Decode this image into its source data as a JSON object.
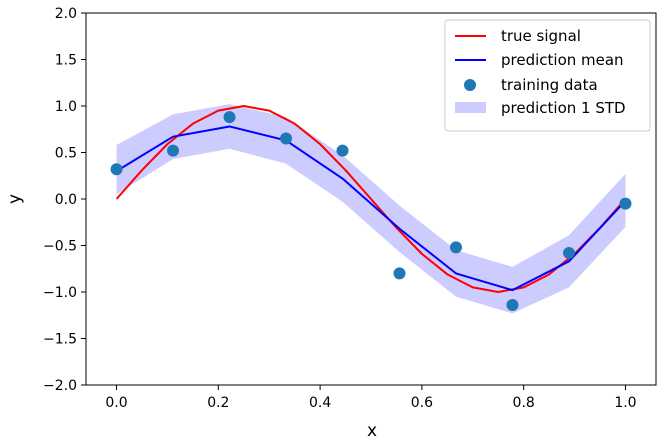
{
  "chart_data": {
    "type": "line",
    "title": "",
    "xlabel": "x",
    "ylabel": "y",
    "xlim": [
      -0.06,
      1.06
    ],
    "ylim": [
      -2.0,
      2.0
    ],
    "xticks": [
      "0.0",
      "0.2",
      "0.4",
      "0.6",
      "0.8",
      "1.0"
    ],
    "yticks": [
      "2.0",
      "1.5",
      "1.0",
      "0.5",
      "0.0",
      "−0.5",
      "−1.0",
      "−1.5",
      "−2.0"
    ],
    "grid": false,
    "legend_position": "top-right",
    "series": [
      {
        "name": "true signal",
        "kind": "line",
        "color": "#ff0000",
        "x": [
          0.0,
          0.05,
          0.1,
          0.15,
          0.2,
          0.25,
          0.3,
          0.35,
          0.4,
          0.45,
          0.5,
          0.55,
          0.6,
          0.65,
          0.7,
          0.75,
          0.8,
          0.85,
          0.9,
          0.95,
          1.0
        ],
        "y": [
          0.0,
          0.31,
          0.59,
          0.81,
          0.95,
          1.0,
          0.95,
          0.81,
          0.59,
          0.31,
          0.0,
          -0.31,
          -0.59,
          -0.81,
          -0.95,
          -1.0,
          -0.95,
          -0.81,
          -0.59,
          -0.31,
          0.0
        ]
      },
      {
        "name": "prediction mean",
        "kind": "line",
        "color": "#0000ff",
        "x": [
          0.0,
          0.111,
          0.222,
          0.333,
          0.444,
          0.556,
          0.667,
          0.778,
          0.889,
          1.0
        ],
        "y": [
          0.3,
          0.67,
          0.78,
          0.63,
          0.22,
          -0.32,
          -0.8,
          -0.98,
          -0.67,
          -0.02
        ]
      },
      {
        "name": "training data",
        "kind": "scatter",
        "color": "#1f77b4",
        "x": [
          0.0,
          0.111,
          0.222,
          0.333,
          0.444,
          0.556,
          0.667,
          0.778,
          0.889,
          1.0
        ],
        "y": [
          0.32,
          0.52,
          0.88,
          0.65,
          0.52,
          -0.8,
          -0.52,
          -1.14,
          -0.58,
          -0.05
        ]
      },
      {
        "name": "prediction 1 STD",
        "kind": "band",
        "color": "#ccccff",
        "x": [
          0.0,
          0.111,
          0.222,
          0.333,
          0.444,
          0.556,
          0.667,
          0.778,
          0.889,
          1.0
        ],
        "lower": [
          0.05,
          0.43,
          0.54,
          0.38,
          -0.03,
          -0.57,
          -1.05,
          -1.23,
          -0.95,
          -0.3
        ],
        "upper": [
          0.58,
          0.91,
          1.02,
          0.88,
          0.47,
          -0.07,
          -0.55,
          -0.73,
          -0.39,
          0.27
        ]
      }
    ]
  }
}
